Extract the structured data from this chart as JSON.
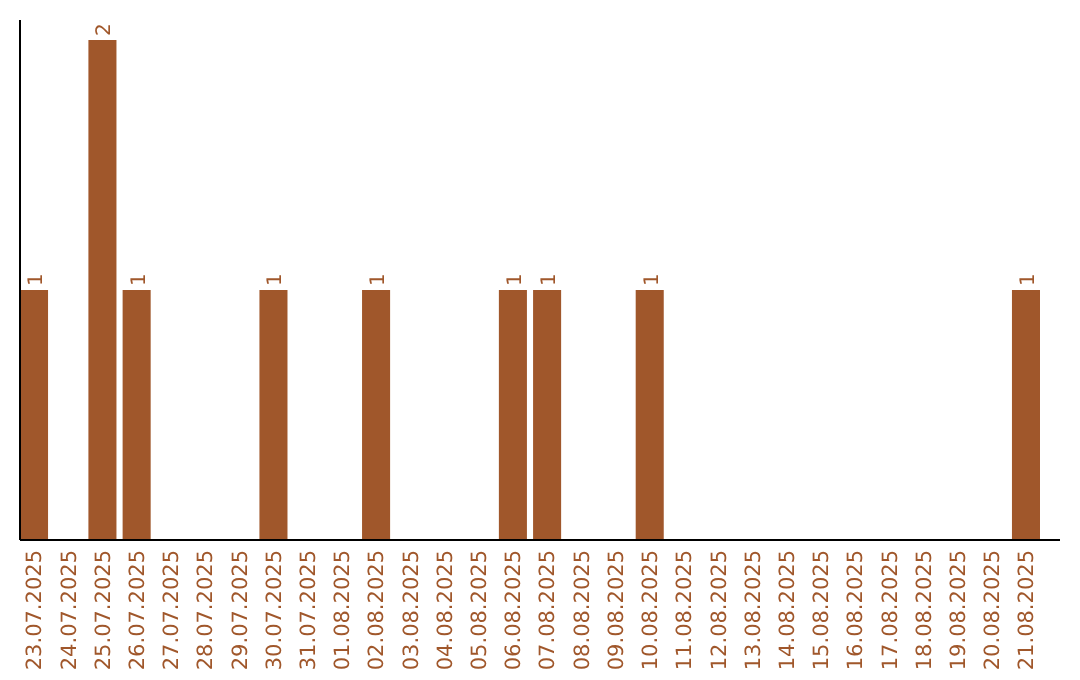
{
  "chart_data": {
    "type": "bar",
    "categories": [
      "23.07.2025",
      "24.07.2025",
      "25.07.2025",
      "26.07.2025",
      "27.07.2025",
      "28.07.2025",
      "29.07.2025",
      "30.07.2025",
      "31.07.2025",
      "01.08.2025",
      "02.08.2025",
      "03.08.2025",
      "04.08.2025",
      "05.08.2025",
      "06.08.2025",
      "07.08.2025",
      "08.08.2025",
      "09.08.2025",
      "10.08.2025",
      "11.08.2025",
      "12.08.2025",
      "13.08.2025",
      "14.08.2025",
      "15.08.2025",
      "16.08.2025",
      "17.08.2025",
      "18.08.2025",
      "19.08.2025",
      "20.08.2025",
      "21.08.2025"
    ],
    "values": [
      1,
      0,
      2,
      1,
      0,
      0,
      0,
      1,
      0,
      0,
      1,
      0,
      0,
      0,
      1,
      1,
      0,
      0,
      1,
      0,
      0,
      0,
      0,
      0,
      0,
      0,
      0,
      0,
      0,
      1
    ],
    "value_labels": [
      "1",
      null,
      "2",
      "1",
      null,
      null,
      null,
      "1",
      null,
      null,
      "1",
      null,
      null,
      null,
      "1",
      "1",
      null,
      null,
      "1",
      null,
      null,
      null,
      null,
      null,
      null,
      null,
      null,
      null,
      null,
      "1"
    ],
    "color": "#a0572b",
    "ylim": [
      0,
      2.08
    ],
    "tick_labels": "x"
  }
}
